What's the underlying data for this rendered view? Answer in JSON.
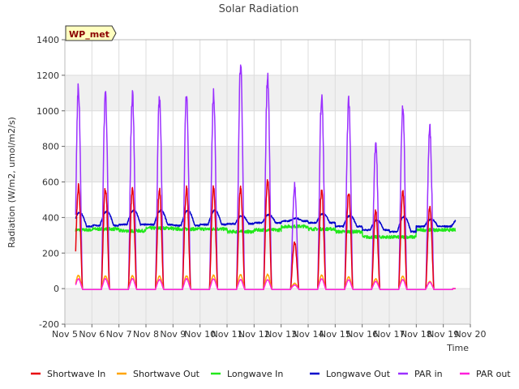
{
  "chart_data": {
    "type": "line",
    "title": "Solar Radiation",
    "xlabel": "Time",
    "ylabel": "Radiation (W/m2, umol/m2/s)",
    "xlim": [
      5,
      20
    ],
    "ylim": [
      -200,
      1400
    ],
    "x_ticks": [
      {
        "value": 5,
        "label": "Nov 5"
      },
      {
        "value": 6,
        "label": "Nov 6"
      },
      {
        "value": 7,
        "label": "Nov 7"
      },
      {
        "value": 8,
        "label": "Nov 8"
      },
      {
        "value": 9,
        "label": "Nov 9"
      },
      {
        "value": 10,
        "label": "Nov 10"
      },
      {
        "value": 11,
        "label": "Nov 11"
      },
      {
        "value": 12,
        "label": "Nov 12"
      },
      {
        "value": 13,
        "label": "Nov 13"
      },
      {
        "value": 14,
        "label": "Nov 14"
      },
      {
        "value": 15,
        "label": "Nov 15"
      },
      {
        "value": 16,
        "label": "Nov 16"
      },
      {
        "value": 17,
        "label": "Nov 17"
      },
      {
        "value": 18,
        "label": "Nov 18"
      },
      {
        "value": 19,
        "label": "Nov 19"
      },
      {
        "value": 20,
        "label": "Nov 20"
      }
    ],
    "y_ticks": [
      -200,
      0,
      200,
      400,
      600,
      800,
      1000,
      1200,
      1400
    ],
    "grid": true,
    "legend_position": "bottom",
    "annotation": "WP_met",
    "day_start": 5.4,
    "day_end": 19.45,
    "series": [
      {
        "name": "Shortwave In",
        "color": "#e8000b",
        "daily_peaks": [
          570,
          560,
          560,
          550,
          560,
          570,
          560,
          610,
          260,
          550,
          540,
          430,
          540,
          450
        ]
      },
      {
        "name": "Shortwave Out",
        "color": "#ffa500",
        "daily_peaks": [
          75,
          72,
          72,
          70,
          72,
          75,
          80,
          80,
          30,
          75,
          65,
          55,
          70,
          40
        ]
      },
      {
        "name": "Longwave In",
        "color": "#22e81b",
        "daily_levels": [
          330,
          335,
          325,
          340,
          335,
          335,
          320,
          330,
          350,
          335,
          320,
          290,
          290,
          330
        ]
      },
      {
        "name": "Longwave Out",
        "color": "#0000cc",
        "daily_levels": [
          350,
          355,
          360,
          360,
          355,
          360,
          365,
          370,
          380,
          370,
          350,
          330,
          320,
          350
        ],
        "daily_peaks": [
          430,
          435,
          440,
          440,
          440,
          440,
          410,
          415,
          395,
          420,
          410,
          385,
          405,
          390
        ]
      },
      {
        "name": "PAR in",
        "color": "#9b30ff",
        "daily_peaks": [
          1125,
          1105,
          1100,
          1070,
          1090,
          1085,
          1260,
          1185,
          580,
          1085,
          1060,
          820,
          1030,
          900
        ]
      },
      {
        "name": "PAR out",
        "color": "#ff1fdb",
        "daily_peaks": [
          55,
          55,
          55,
          50,
          55,
          55,
          50,
          50,
          20,
          55,
          50,
          40,
          50,
          35
        ]
      }
    ]
  }
}
